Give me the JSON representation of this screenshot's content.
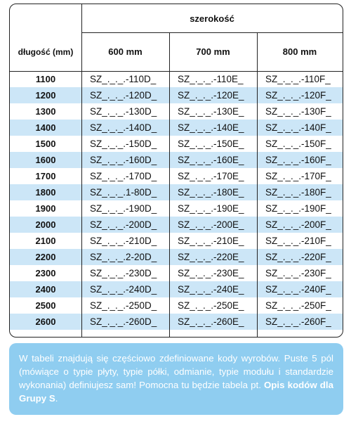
{
  "table": {
    "header": {
      "group": "szerokość",
      "columns": [
        "długość (mm)",
        "600 mm",
        "700 mm",
        "800 mm"
      ]
    },
    "rows": [
      [
        "1100",
        "SZ_._._.-110D_",
        "SZ_._._.-110E_",
        "SZ_._._.-110F_"
      ],
      [
        "1200",
        "SZ_._._.-120D_",
        "SZ_._._.-120E_",
        "SZ_._._.-120F_"
      ],
      [
        "1300",
        "SZ_._._.-130D_",
        "SZ_._._.-130E_",
        "SZ_._._.-130F_"
      ],
      [
        "1400",
        "SZ_._._.-140D_",
        "SZ_._._.-140E_",
        "SZ_._._.-140F_"
      ],
      [
        "1500",
        "SZ_._._.-150D_",
        "SZ_._._.-150E_",
        "SZ_._._.-150F_"
      ],
      [
        "1600",
        "SZ_._._.-160D_",
        "SZ_._._.-160E_",
        "SZ_._._.-160F_"
      ],
      [
        "1700",
        "SZ_._._.-170D_",
        "SZ_._._.-170E_",
        "SZ_._._.-170F_"
      ],
      [
        "1800",
        "SZ_._._.1-80D_",
        "SZ_._._.-180E_",
        "SZ_._._.-180F_"
      ],
      [
        "1900",
        "SZ_._._.-190D_",
        "SZ_._._.-190E_",
        "SZ_._._.-190F_"
      ],
      [
        "2000",
        "SZ_._._.-200D_",
        "SZ_._._.-200E_",
        "SZ_._._.-200F_"
      ],
      [
        "2100",
        "SZ_._._.-210D_",
        "SZ_._._.-210E_",
        "SZ_._._.-210F_"
      ],
      [
        "2200",
        "SZ_._._.2-20D_",
        "SZ_._._.-220E_",
        "SZ_._._.-220F_"
      ],
      [
        "2300",
        "SZ_._._.-230D_",
        "SZ_._._.-230E_",
        "SZ_._._.-230F_"
      ],
      [
        "2400",
        "SZ_._._.-240D_",
        "SZ_._._.-240E_",
        "SZ_._._.-240F_"
      ],
      [
        "2500",
        "SZ_._._.-250D_",
        "SZ_._._.-250E_",
        "SZ_._._.-250F_"
      ],
      [
        "2600",
        "SZ_._._.-260D_",
        "SZ_._._.-260E_",
        "SZ_._._.-260F_"
      ]
    ]
  },
  "note": {
    "text": "W tabeli znajdują się częściowo zdefiniowane kody wyrobów. Puste 5 pól (mówiące o typie płyty, typie półki, odmianie, typie modułu i standardzie wykonania) definiujesz sam! Pomocna tu będzie tabela pt. ",
    "bold": "Opis kodów dla Grupy S",
    "end": "."
  }
}
